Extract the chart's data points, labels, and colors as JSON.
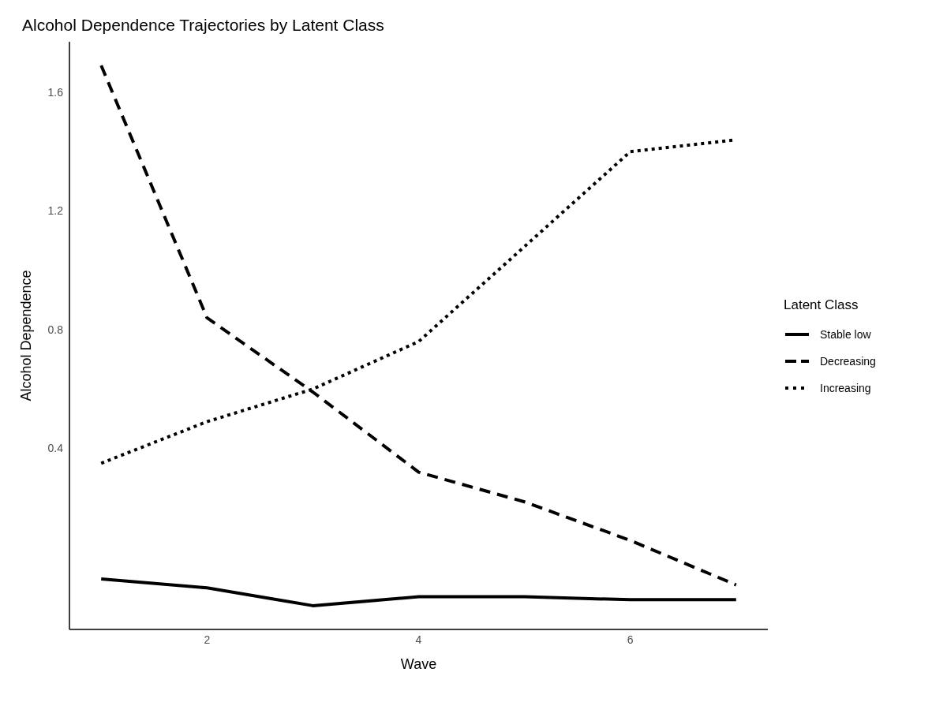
{
  "chart_data": {
    "type": "line",
    "title": "Alcohol Dependence Trajectories by Latent Class",
    "xlabel": "Wave",
    "ylabel": "Alcohol Dependence",
    "legend_title": "Latent Class",
    "x": [
      1,
      2,
      3,
      4,
      5,
      6,
      7
    ],
    "series": [
      {
        "name": "Stable low",
        "color": "#000000",
        "line_style": "solid",
        "values": [
          -0.04,
          -0.07,
          -0.13,
          -0.1,
          -0.1,
          -0.11,
          -0.11
        ]
      },
      {
        "name": "Decreasing",
        "color": "#000000",
        "line_style": "dashed",
        "values": [
          1.69,
          0.84,
          0.59,
          0.32,
          0.22,
          0.09,
          -0.06
        ]
      },
      {
        "name": "Increasing",
        "color": "#000000",
        "line_style": "dotted",
        "values": [
          0.35,
          0.49,
          0.6,
          0.76,
          1.08,
          1.4,
          1.44
        ]
      }
    ],
    "xlim": [
      0.7,
      7.3
    ],
    "xticks": [
      2,
      4,
      6
    ],
    "ylim": [
      -0.21,
      1.77
    ],
    "yticks": [
      0.4,
      0.8,
      1.2,
      1.6
    ],
    "grid": false,
    "legend": "right"
  }
}
